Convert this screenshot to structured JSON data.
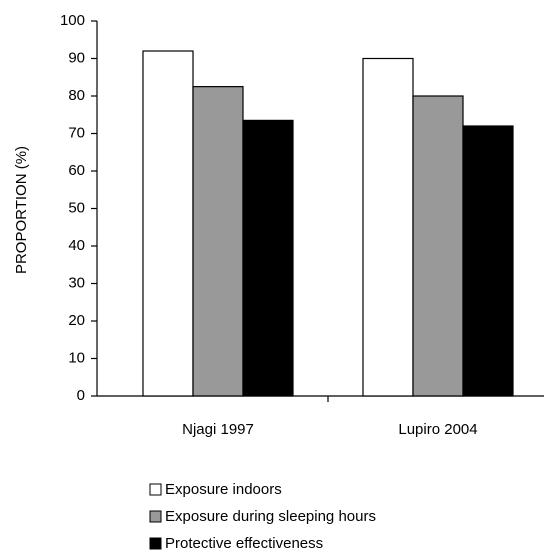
{
  "chart_data": {
    "type": "bar",
    "y_label": "PROPORTION (%)",
    "categories": [
      "Njagi 1997",
      "Lupiro 2004"
    ],
    "series": [
      {
        "name": "Exposure indoors",
        "color": "#ffffff",
        "values": [
          92,
          90
        ]
      },
      {
        "name": "Exposure during sleeping hours",
        "color": "#999999",
        "values": [
          82.5,
          80
        ]
      },
      {
        "name": "Protective effectiveness",
        "color": "#000000",
        "values": [
          73.5,
          72
        ]
      }
    ],
    "ylim": [
      0,
      100
    ],
    "yticks": [
      0,
      10,
      20,
      30,
      40,
      50,
      60,
      70,
      80,
      90,
      100
    ],
    "legend": "bottom"
  }
}
